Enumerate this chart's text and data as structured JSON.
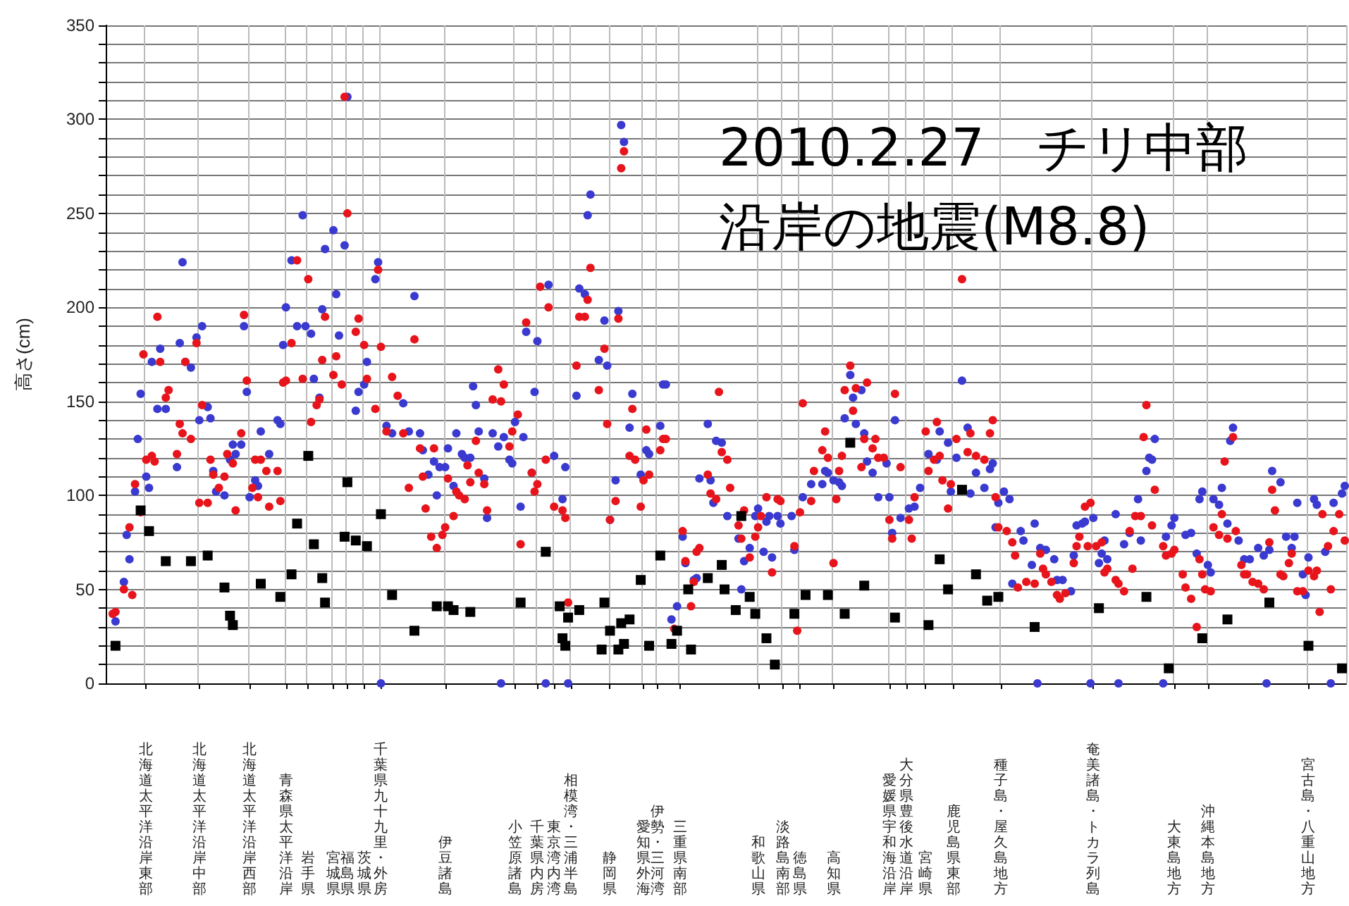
{
  "chart_data": {
    "type": "scatter",
    "title": "2010.2.27　チリ中部沿岸の地震(M8.8)",
    "ylabel": "高さ(cm)",
    "categories": [
      null,
      null,
      null,
      null,
      null,
      null,
      null,
      null,
      null,
      null,
      null,
      null,
      null,
      null,
      "北海道太平洋沿岸東部",
      null,
      null,
      null,
      null,
      null,
      null,
      null,
      null,
      null,
      null,
      null,
      null,
      null,
      null,
      null,
      null,
      null,
      null,
      "北海道太平洋沿岸中部",
      null,
      null,
      null,
      null,
      null,
      null,
      null,
      null,
      null,
      null,
      null,
      null,
      null,
      null,
      null,
      null,
      null,
      "北海道太平洋沿岸西部",
      null,
      null,
      null,
      null,
      null,
      null,
      null,
      null,
      null,
      null,
      null,
      null,
      "青森県太平洋沿岸",
      null,
      null,
      null,
      null,
      null,
      null,
      null,
      "岩手県",
      null,
      null,
      null,
      null,
      null,
      null,
      null,
      null,
      "宮城県",
      null,
      null,
      null,
      null,
      "福島県",
      null,
      null,
      null,
      null,
      null,
      "茨城県",
      null,
      null,
      null,
      null,
      null,
      "千葉県九十九里・外房",
      null,
      null,
      null,
      null,
      null,
      null,
      null,
      null,
      null,
      null,
      null,
      null,
      null,
      null,
      null,
      null,
      null,
      null,
      null,
      null,
      null,
      null,
      "伊豆諸島",
      null,
      null,
      null,
      null,
      null,
      null,
      null,
      null,
      null,
      null,
      null,
      null,
      null,
      null,
      null,
      null,
      null,
      null,
      null,
      null,
      null,
      null,
      null,
      null,
      "小笠原諸島",
      null,
      null,
      null,
      null,
      null,
      null,
      null,
      "千葉県内房",
      null,
      null,
      null,
      null,
      null,
      "東京湾内湾",
      null,
      null,
      null,
      null,
      null,
      "相模湾・三浦半島",
      null,
      null,
      null,
      null,
      null,
      null,
      null,
      null,
      null,
      null,
      null,
      null,
      null,
      "静岡県",
      null,
      null,
      null,
      null,
      null,
      null,
      null,
      null,
      null,
      null,
      null,
      "愛知県外海",
      null,
      null,
      null,
      null,
      "伊勢・三河湾",
      null,
      null,
      null,
      null,
      null,
      null,
      null,
      "三重県南部",
      null,
      null,
      null,
      null,
      null,
      null,
      null,
      null,
      null,
      null,
      null,
      null,
      null,
      null,
      null,
      null,
      null,
      null,
      null,
      null,
      null,
      null,
      null,
      null,
      null,
      null,
      null,
      "和歌山県",
      null,
      null,
      null,
      null,
      null,
      null,
      null,
      null,
      "淡路島南部",
      null,
      null,
      null,
      null,
      null,
      "徳島県",
      null,
      null,
      null,
      null,
      null,
      null,
      null,
      null,
      null,
      null,
      null,
      "高知県",
      null,
      null,
      null,
      null,
      null,
      null,
      null,
      null,
      null,
      null,
      null,
      null,
      null,
      null,
      null,
      null,
      null,
      null,
      null,
      "愛媛県宇和海沿岸",
      null,
      null,
      null,
      null,
      null,
      "大分県豊後水道沿岸",
      null,
      null,
      null,
      null,
      null,
      null,
      "宮崎県",
      null,
      null,
      null,
      null,
      null,
      null,
      null,
      null,
      null,
      "鹿児島県東部",
      null,
      null,
      null,
      null,
      null,
      null,
      null,
      null,
      null,
      null,
      null,
      null,
      null,
      null,
      null,
      null,
      "種子島・屋久島地方",
      null,
      null,
      null,
      null,
      null,
      null,
      null,
      null,
      null,
      null,
      null,
      null,
      null,
      null,
      null,
      null,
      null,
      null,
      null,
      null,
      null,
      null,
      null,
      null,
      null,
      null,
      null,
      null,
      null,
      null,
      null,
      null,
      "奄美諸島・トカラ列島",
      null,
      null,
      null,
      null,
      null,
      null,
      null,
      null,
      null,
      null,
      null,
      null,
      null,
      null,
      null,
      null,
      null,
      null,
      null,
      null,
      null,
      null,
      null,
      null,
      null,
      null,
      null,
      null,
      "大東島地方",
      null,
      null,
      null,
      null,
      null,
      null,
      null,
      null,
      null,
      null,
      null,
      "沖縄本島地方",
      null,
      null,
      null,
      null,
      null,
      null,
      null,
      null,
      null,
      null,
      null,
      null,
      null,
      null,
      null,
      null,
      null,
      null,
      null,
      null,
      null,
      null,
      null,
      null,
      null,
      null,
      null,
      null,
      null,
      null,
      null,
      null,
      null,
      null,
      null,
      "宮古島・八重山地方",
      null,
      null,
      null,
      null,
      null,
      null,
      null,
      null,
      null,
      null,
      null,
      null,
      null
    ],
    "ylim": [
      0,
      350
    ],
    "yticks": [
      0,
      {
        "value": 10,
        "label": null
      },
      {
        "value": 20,
        "label": null
      },
      {
        "value": 30,
        "label": null
      },
      {
        "value": 40,
        "label": null
      },
      50,
      {
        "value": 60,
        "label": null
      },
      {
        "value": 70,
        "label": null
      },
      {
        "value": 80,
        "label": null
      },
      {
        "value": 90,
        "label": null
      },
      100,
      {
        "value": 110,
        "label": null
      },
      {
        "value": 120,
        "label": null
      },
      {
        "value": 130,
        "label": null
      },
      {
        "value": 140,
        "label": null
      },
      150,
      {
        "value": 160,
        "label": null
      },
      {
        "value": 170,
        "label": null
      },
      {
        "value": 180,
        "label": null
      },
      {
        "value": 190,
        "label": null
      },
      200,
      {
        "value": 210,
        "label": null
      },
      {
        "value": 220,
        "label": null
      },
      {
        "value": 230,
        "label": null
      },
      {
        "value": 240,
        "label": null
      },
      250,
      {
        "value": 260,
        "label": null
      },
      {
        "value": 270,
        "label": null
      },
      {
        "value": 280,
        "label": null
      },
      {
        "value": 290,
        "label": null
      },
      300,
      {
        "value": 310,
        "label": null
      },
      {
        "value": 320,
        "label": null
      },
      {
        "value": 330,
        "label": null
      },
      {
        "value": 340,
        "label": null
      },
      350
    ],
    "grid": true,
    "series": [
      {
        "color": "#3a3ad0",
        "marker": "circle",
        "values": [
          null,
          null,
          null,
          33,
          null,
          null,
          54,
          79,
          66,
          null,
          102,
          130,
          154,
          null,
          110,
          104,
          171,
          null,
          146,
          178,
          null,
          146,
          null,
          null,
          null,
          115,
          181,
          224,
          171,
          null,
          168,
          null,
          184,
          140,
          190,
          null,
          147,
          141,
          113,
          102,
          null,
          null,
          100,
          null,
          119,
          127,
          122,
          null,
          127,
          190,
          155,
          99,
          null,
          108,
          105,
          134,
          null,
          null,
          122,
          null,
          null,
          140,
          138,
          180,
          200,
          null,
          225,
          null,
          190,
          null,
          249,
          190,
          null,
          186,
          162,
          null,
          152,
          199,
          231,
          null,
          null,
          241,
          207,
          185,
          null,
          233,
          312,
          null,
          null,
          145,
          155,
          null,
          159,
          171,
          null,
          null,
          215,
          224,
          0,
          null,
          137,
          null,
          133,
          null,
          null,
          null,
          149,
          null,
          134,
          null,
          206,
          null,
          133,
          124,
          null,
          111,
          null,
          118,
          100,
          115,
          null,
          115,
          125,
          null,
          105,
          133,
          null,
          122,
          120,
          null,
          120,
          158,
          148,
          134,
          null,
          109,
          88,
          null,
          133,
          null,
          126,
          0,
          131,
          null,
          119,
          117,
          139,
          null,
          94,
          131,
          187,
          null,
          112,
          155,
          182,
          null,
          null,
          0,
          212,
          null,
          121,
          null,
          null,
          98,
          115,
          0,
          null,
          null,
          153,
          210,
          null,
          207,
          249,
          260,
          null,
          null,
          172,
          null,
          193,
          169,
          87,
          null,
          108,
          198,
          297,
          288,
          null,
          136,
          154,
          null,
          null,
          111,
          null,
          124,
          122,
          null,
          null,
          null,
          137,
          159,
          159,
          null,
          34,
          null,
          41,
          null,
          78,
          64,
          null,
          null,
          55,
          56,
          109,
          null,
          null,
          138,
          108,
          96,
          129,
          null,
          128,
          null,
          89,
          null,
          null,
          null,
          77,
          50,
          65,
          null,
          72,
          null,
          89,
          93,
          null,
          70,
          86,
          89,
          67,
          null,
          89,
          85,
          null,
          null,
          null,
          89,
          71,
          null,
          null,
          99,
          null,
          null,
          106,
          null,
          null,
          null,
          106,
          113,
          112,
          null,
          108,
          null,
          107,
          105,
          141,
          null,
          164,
          152,
          138,
          null,
          156,
          133,
          118,
          null,
          112,
          null,
          99,
          null,
          null,
          117,
          99,
          80,
          140,
          null,
          88,
          null,
          null,
          93,
          null,
          94,
          null,
          104,
          null,
          null,
          122,
          null,
          null,
          119,
          134,
          null,
          null,
          128,
          102,
          null,
          120,
          null,
          161,
          null,
          136,
          101,
          null,
          112,
          null,
          null,
          104,
          null,
          114,
          117,
          83,
          96,
          null,
          102,
          null,
          98,
          53,
          null,
          null,
          81,
          76,
          null,
          null,
          63,
          85,
          0,
          72,
          null,
          71,
          null,
          null,
          66,
          55,
          null,
          55,
          null,
          null,
          49,
          68,
          84,
          null,
          85,
          86,
          null,
          0,
          88,
          null,
          64,
          69,
          76,
          66,
          null,
          null,
          90,
          0,
          null,
          74,
          null,
          80,
          null,
          null,
          98,
          76,
          null,
          113,
          120,
          119,
          130,
          null,
          null,
          0,
          78,
          null,
          84,
          88,
          null,
          null,
          null,
          79,
          null,
          80,
          null,
          69,
          98,
          102,
          null,
          63,
          59,
          98,
          null,
          95,
          104,
          null,
          85,
          129,
          136,
          null,
          76,
          null,
          66,
          null,
          66,
          null,
          null,
          72,
          null,
          68,
          0,
          71,
          113,
          null,
          null,
          107,
          null,
          78,
          null,
          72,
          78,
          96,
          null,
          58,
          47,
          67,
          null,
          98,
          95,
          null,
          null,
          70,
          null,
          0,
          96,
          null,
          null,
          101,
          105
        ]
      },
      {
        "color": "#e8141c",
        "marker": "circle",
        "values": [
          null,
          null,
          37,
          38,
          null,
          null,
          50,
          null,
          83,
          47,
          106,
          null,
          91,
          175,
          119,
          null,
          121,
          118,
          195,
          171,
          null,
          152,
          156,
          null,
          null,
          122,
          138,
          133,
          171,
          null,
          130,
          null,
          181,
          96,
          148,
          null,
          96,
          119,
          111,
          null,
          104,
          null,
          110,
          122,
          null,
          117,
          92,
          null,
          133,
          196,
          161,
          null,
          104,
          119,
          99,
          119,
          null,
          113,
          94,
          null,
          null,
          113,
          97,
          160,
          161,
          null,
          181,
          null,
          225,
          null,
          162,
          null,
          215,
          139,
          null,
          148,
          151,
          172,
          195,
          null,
          null,
          164,
          174,
          null,
          159,
          312,
          250,
          null,
          null,
          187,
          194,
          null,
          180,
          162,
          null,
          null,
          146,
          220,
          179,
          null,
          134,
          null,
          163,
          null,
          153,
          null,
          133,
          null,
          104,
          null,
          183,
          null,
          125,
          110,
          93,
          null,
          78,
          125,
          72,
          null,
          79,
          83,
          109,
          null,
          89,
          102,
          100,
          null,
          98,
          116,
          107,
          null,
          129,
          112,
          null,
          106,
          92,
          null,
          151,
          null,
          167,
          150,
          159,
          null,
          126,
          134,
          null,
          143,
          74,
          null,
          192,
          null,
          112,
          102,
          106,
          211,
          null,
          119,
          200,
          null,
          94,
          null,
          null,
          92,
          88,
          43,
          null,
          null,
          169,
          195,
          null,
          195,
          204,
          221,
          null,
          null,
          156,
          null,
          178,
          138,
          87,
          null,
          97,
          194,
          274,
          283,
          null,
          121,
          146,
          119,
          null,
          94,
          108,
          135,
          111,
          null,
          null,
          null,
          124,
          130,
          130,
          null,
          null,
          29,
          null,
          null,
          81,
          65,
          null,
          41,
          54,
          70,
          72,
          null,
          null,
          111,
          101,
          null,
          98,
          155,
          123,
          null,
          119,
          104,
          null,
          null,
          84,
          77,
          92,
          null,
          67,
          null,
          78,
          83,
          89,
          null,
          99,
          null,
          59,
          null,
          98,
          97,
          null,
          null,
          null,
          null,
          73,
          28,
          91,
          149,
          null,
          null,
          97,
          113,
          null,
          null,
          124,
          134,
          120,
          null,
          64,
          98,
          113,
          121,
          156,
          null,
          169,
          145,
          157,
          null,
          115,
          130,
          160,
          null,
          125,
          130,
          120,
          null,
          120,
          null,
          87,
          77,
          154,
          null,
          115,
          null,
          null,
          87,
          77,
          99,
          null,
          null,
          null,
          134,
          113,
          null,
          119,
          139,
          121,
          108,
          null,
          93,
          106,
          null,
          130,
          null,
          215,
          null,
          123,
          133,
          null,
          121,
          null,
          null,
          119,
          null,
          133,
          140,
          99,
          83,
          null,
          null,
          81,
          null,
          75,
          68,
          51,
          null,
          null,
          54,
          null,
          null,
          53,
          null,
          69,
          61,
          58,
          null,
          54,
          null,
          47,
          45,
          null,
          48,
          null,
          null,
          64,
          73,
          78,
          null,
          94,
          73,
          96,
          null,
          73,
          null,
          75,
          59,
          61,
          null,
          null,
          55,
          53,
          null,
          49,
          null,
          81,
          61,
          89,
          null,
          89,
          131,
          148,
          null,
          84,
          103,
          null,
          null,
          73,
          68,
          null,
          69,
          71,
          null,
          null,
          58,
          51,
          null,
          45,
          null,
          30,
          66,
          58,
          50,
          null,
          49,
          83,
          null,
          79,
          90,
          118,
          77,
          null,
          131,
          81,
          null,
          63,
          58,
          58,
          null,
          54,
          null,
          53,
          null,
          50,
          null,
          75,
          103,
          92,
          null,
          58,
          57,
          null,
          64,
          69,
          null,
          49,
          null,
          49,
          null,
          60,
          null,
          57,
          60,
          38,
          90,
          null,
          73,
          50,
          81,
          null,
          90,
          null,
          76
        ]
      },
      {
        "color": "#000000",
        "marker": "square",
        "values": [
          null,
          null,
          null,
          20,
          null,
          null,
          null,
          null,
          null,
          null,
          null,
          null,
          92,
          null,
          null,
          81,
          null,
          null,
          null,
          null,
          null,
          65,
          null,
          null,
          null,
          null,
          null,
          null,
          null,
          null,
          65,
          null,
          null,
          null,
          null,
          null,
          68,
          null,
          null,
          null,
          null,
          null,
          51,
          null,
          36,
          31,
          null,
          null,
          null,
          null,
          null,
          null,
          null,
          null,
          null,
          53,
          null,
          null,
          null,
          null,
          null,
          null,
          46,
          null,
          null,
          null,
          58,
          null,
          85,
          null,
          null,
          null,
          121,
          null,
          74,
          null,
          null,
          56,
          43,
          null,
          null,
          null,
          null,
          null,
          null,
          78,
          107,
          null,
          null,
          76,
          null,
          null,
          null,
          73,
          null,
          null,
          null,
          null,
          90,
          null,
          null,
          null,
          47,
          null,
          null,
          null,
          null,
          null,
          null,
          null,
          28,
          null,
          null,
          null,
          null,
          null,
          null,
          null,
          41,
          null,
          null,
          null,
          41,
          null,
          39,
          null,
          null,
          null,
          null,
          null,
          38,
          null,
          null,
          null,
          null,
          null,
          null,
          null,
          null,
          null,
          null,
          null,
          null,
          null,
          null,
          null,
          null,
          null,
          43,
          null,
          null,
          null,
          null,
          null,
          null,
          null,
          null,
          70,
          null,
          null,
          null,
          null,
          41,
          24,
          20,
          35,
          null,
          null,
          null,
          39,
          null,
          null,
          null,
          null,
          null,
          null,
          null,
          18,
          43,
          null,
          28,
          null,
          null,
          18,
          32,
          21,
          null,
          34,
          null,
          null,
          null,
          55,
          null,
          null,
          20,
          null,
          null,
          null,
          68,
          null,
          null,
          null,
          21,
          null,
          28,
          null,
          null,
          null,
          50,
          18,
          null,
          null,
          null,
          null,
          null,
          56,
          null,
          null,
          null,
          null,
          63,
          50,
          null,
          null,
          null,
          39,
          null,
          89,
          null,
          null,
          46,
          null,
          37,
          null,
          null,
          null,
          24,
          null,
          null,
          10,
          null,
          null,
          null,
          null,
          null,
          null,
          37,
          null,
          null,
          null,
          47,
          null,
          null,
          null,
          null,
          null,
          null,
          null,
          47,
          null,
          null,
          null,
          null,
          null,
          37,
          null,
          128,
          null,
          null,
          null,
          null,
          52,
          null,
          null,
          null,
          null,
          null,
          null,
          null,
          null,
          null,
          null,
          35,
          null,
          null,
          null,
          null,
          null,
          null,
          null,
          null,
          null,
          null,
          null,
          31,
          null,
          null,
          null,
          66,
          null,
          null,
          50,
          null,
          null,
          null,
          null,
          103,
          null,
          null,
          null,
          null,
          58,
          null,
          null,
          null,
          44,
          null,
          null,
          null,
          46,
          null,
          null,
          null,
          null,
          null,
          null,
          null,
          null,
          null,
          null,
          null,
          null,
          30,
          null,
          null,
          null,
          null,
          null,
          null,
          null,
          null,
          null,
          null,
          null,
          null,
          null,
          null,
          null,
          null,
          null,
          null,
          null,
          null,
          null,
          null,
          40,
          null,
          null,
          null,
          null,
          null,
          null,
          null,
          null,
          null,
          null,
          null,
          null,
          null,
          null,
          null,
          null,
          46,
          null,
          null,
          null,
          null,
          null,
          null,
          null,
          8,
          null,
          null,
          null,
          null,
          null,
          null,
          null,
          null,
          null,
          null,
          null,
          24,
          null,
          null,
          null,
          null,
          null,
          null,
          null,
          null,
          34,
          null,
          null,
          null,
          null,
          null,
          null,
          null,
          null,
          null,
          null,
          null,
          null,
          null,
          null,
          43,
          null,
          null,
          null,
          null,
          null,
          null,
          null,
          null,
          null,
          null,
          null,
          null,
          null,
          20,
          null,
          null,
          null,
          null,
          null,
          null,
          null,
          null,
          null,
          null,
          null,
          8,
          null
        ]
      }
    ]
  }
}
